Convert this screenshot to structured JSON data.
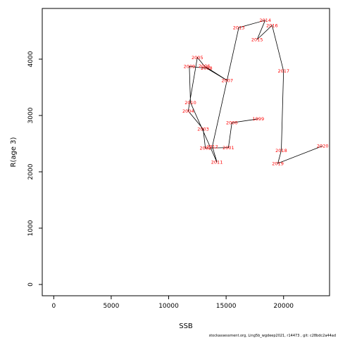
{
  "chart_data": {
    "type": "line",
    "xlabel": "SSB",
    "ylabel": "R(age 3)",
    "xlim": [
      -1000,
      24000
    ],
    "ylim": [
      -200,
      4900
    ],
    "xticks": [
      0,
      5000,
      10000,
      15000,
      20000
    ],
    "yticks": [
      0,
      1000,
      2000,
      3000,
      4000
    ],
    "grid": false,
    "legend": "none",
    "colors": {
      "line": "#000000",
      "label": "#ff0000"
    },
    "points": [
      {
        "year": "1999",
        "ssb": 17800,
        "r": 2940
      },
      {
        "year": "2000",
        "ssb": 15500,
        "r": 2870
      },
      {
        "year": "2001",
        "ssb": 15200,
        "r": 2430
      },
      {
        "year": "2002",
        "ssb": 13200,
        "r": 2420
      },
      {
        "year": "2003",
        "ssb": 13000,
        "r": 2760
      },
      {
        "year": "2004",
        "ssb": 11700,
        "r": 3080
      },
      {
        "year": "2005",
        "ssb": 12500,
        "r": 4030
      },
      {
        "year": "2006",
        "ssb": 13100,
        "r": 3880
      },
      {
        "year": "2007",
        "ssb": 15100,
        "r": 3620
      },
      {
        "year": "2008",
        "ssb": 13300,
        "r": 3840
      },
      {
        "year": "2009",
        "ssb": 11800,
        "r": 3870
      },
      {
        "year": "2010",
        "ssb": 11900,
        "r": 3230
      },
      {
        "year": "2011",
        "ssb": 14200,
        "r": 2170
      },
      {
        "year": "2012",
        "ssb": 13800,
        "r": 2450
      },
      {
        "year": "2013",
        "ssb": 16100,
        "r": 4560
      },
      {
        "year": "2014",
        "ssb": 18400,
        "r": 4690
      },
      {
        "year": "2015",
        "ssb": 17700,
        "r": 4350
      },
      {
        "year": "2016",
        "ssb": 19000,
        "r": 4600
      },
      {
        "year": "2017",
        "ssb": 20000,
        "r": 3790
      },
      {
        "year": "2018",
        "ssb": 19800,
        "r": 2380
      },
      {
        "year": "2019",
        "ssb": 19500,
        "r": 2150
      },
      {
        "year": "2020",
        "ssb": 23400,
        "r": 2460
      }
    ]
  },
  "footer": "stockassessment.org, Ling5b_wgdeep2021, r14473 , git: c28bdc2a44ad"
}
